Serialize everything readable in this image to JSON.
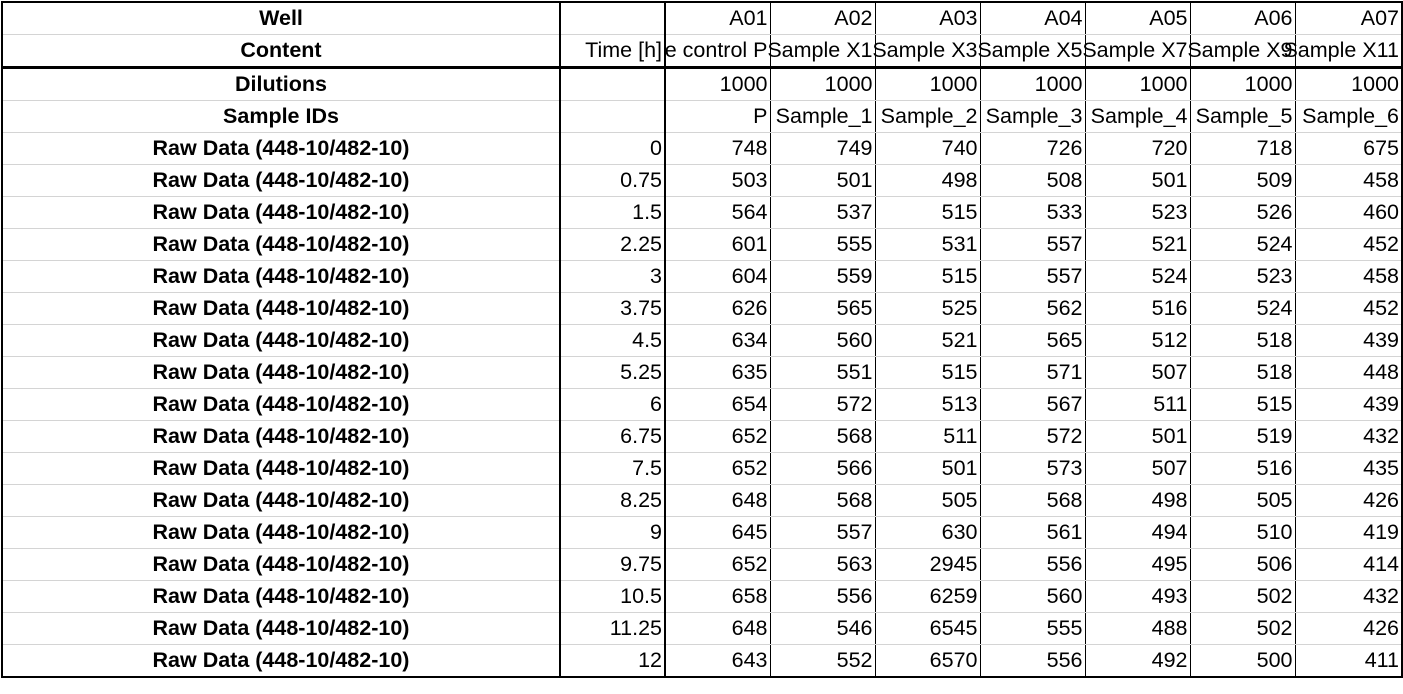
{
  "rows": [
    {
      "label": "Well",
      "time": "",
      "cells": [
        "A01",
        "A02",
        "A03",
        "A04",
        "A05",
        "A06",
        "A07"
      ]
    },
    {
      "label": "Content",
      "time": "Time [h]",
      "cells": [
        "e control P",
        "Sample X1",
        "Sample X3",
        "Sample X5",
        "Sample X7",
        "Sample X9",
        "Sample X11"
      ]
    },
    {
      "label": "Dilutions",
      "time": "",
      "cells": [
        "1000",
        "1000",
        "1000",
        "1000",
        "1000",
        "1000",
        "1000"
      ]
    },
    {
      "label": "Sample IDs",
      "time": "",
      "cells": [
        "P",
        "Sample_1",
        "Sample_2",
        "Sample_3",
        "Sample_4",
        "Sample_5",
        "Sample_6"
      ]
    },
    {
      "label": "Raw Data (448-10/482-10)",
      "time": "0",
      "cells": [
        "748",
        "749",
        "740",
        "726",
        "720",
        "718",
        "675"
      ]
    },
    {
      "label": "Raw Data (448-10/482-10)",
      "time": "0.75",
      "cells": [
        "503",
        "501",
        "498",
        "508",
        "501",
        "509",
        "458"
      ]
    },
    {
      "label": "Raw Data (448-10/482-10)",
      "time": "1.5",
      "cells": [
        "564",
        "537",
        "515",
        "533",
        "523",
        "526",
        "460"
      ]
    },
    {
      "label": "Raw Data (448-10/482-10)",
      "time": "2.25",
      "cells": [
        "601",
        "555",
        "531",
        "557",
        "521",
        "524",
        "452"
      ]
    },
    {
      "label": "Raw Data (448-10/482-10)",
      "time": "3",
      "cells": [
        "604",
        "559",
        "515",
        "557",
        "524",
        "523",
        "458"
      ]
    },
    {
      "label": "Raw Data (448-10/482-10)",
      "time": "3.75",
      "cells": [
        "626",
        "565",
        "525",
        "562",
        "516",
        "524",
        "452"
      ]
    },
    {
      "label": "Raw Data (448-10/482-10)",
      "time": "4.5",
      "cells": [
        "634",
        "560",
        "521",
        "565",
        "512",
        "518",
        "439"
      ]
    },
    {
      "label": "Raw Data (448-10/482-10)",
      "time": "5.25",
      "cells": [
        "635",
        "551",
        "515",
        "571",
        "507",
        "518",
        "448"
      ]
    },
    {
      "label": "Raw Data (448-10/482-10)",
      "time": "6",
      "cells": [
        "654",
        "572",
        "513",
        "567",
        "511",
        "515",
        "439"
      ]
    },
    {
      "label": "Raw Data (448-10/482-10)",
      "time": "6.75",
      "cells": [
        "652",
        "568",
        "511",
        "572",
        "501",
        "519",
        "432"
      ]
    },
    {
      "label": "Raw Data (448-10/482-10)",
      "time": "7.5",
      "cells": [
        "652",
        "566",
        "501",
        "573",
        "507",
        "516",
        "435"
      ]
    },
    {
      "label": "Raw Data (448-10/482-10)",
      "time": "8.25",
      "cells": [
        "648",
        "568",
        "505",
        "568",
        "498",
        "505",
        "426"
      ]
    },
    {
      "label": "Raw Data (448-10/482-10)",
      "time": "9",
      "cells": [
        "645",
        "557",
        "630",
        "561",
        "494",
        "510",
        "419"
      ]
    },
    {
      "label": "Raw Data (448-10/482-10)",
      "time": "9.75",
      "cells": [
        "652",
        "563",
        "2945",
        "556",
        "495",
        "506",
        "414"
      ]
    },
    {
      "label": "Raw Data (448-10/482-10)",
      "time": "10.5",
      "cells": [
        "658",
        "556",
        "6259",
        "560",
        "493",
        "502",
        "432"
      ]
    },
    {
      "label": "Raw Data (448-10/482-10)",
      "time": "11.25",
      "cells": [
        "648",
        "546",
        "6545",
        "555",
        "488",
        "502",
        "426"
      ]
    },
    {
      "label": "Raw Data (448-10/482-10)",
      "time": "12",
      "cells": [
        "643",
        "552",
        "6570",
        "556",
        "492",
        "500",
        "411"
      ]
    }
  ]
}
